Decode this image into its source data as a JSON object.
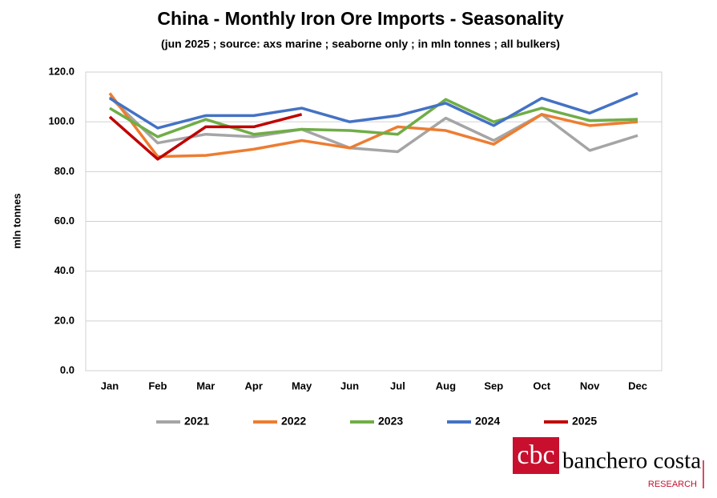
{
  "chart_data": {
    "type": "line",
    "title": "China - Monthly Iron Ore Imports - Seasonality",
    "subtitle": "(jun 2025 ; source: axs marine ; seaborne only ; in mln tonnes ; all bulkers)",
    "y_label": "mln tonnes",
    "categories": [
      "Jan",
      "Feb",
      "Mar",
      "Apr",
      "May",
      "Jun",
      "Jul",
      "Aug",
      "Sep",
      "Oct",
      "Nov",
      "Dec"
    ],
    "series": [
      {
        "name": "2021",
        "color": "#a5a5a5",
        "values": [
          110,
          91.5,
          95,
          94,
          97,
          89.5,
          88,
          101.5,
          92.5,
          103,
          88.5,
          94.5
        ]
      },
      {
        "name": "2022",
        "color": "#ed7d31",
        "values": [
          111.5,
          86,
          86.5,
          89,
          92.5,
          89.5,
          98,
          96.5,
          91,
          103,
          98.5,
          100
        ]
      },
      {
        "name": "2023",
        "color": "#70ad47",
        "values": [
          105.5,
          94,
          101,
          95,
          97,
          96.5,
          95,
          109,
          100,
          105.5,
          100.5,
          101
        ]
      },
      {
        "name": "2024",
        "color": "#4472c4",
        "values": [
          109.5,
          97.5,
          102.5,
          102.5,
          105.5,
          100,
          102.5,
          107.5,
          98.5,
          109.5,
          103.5,
          111.5
        ]
      },
      {
        "name": "2025",
        "color": "#c00000",
        "values": [
          102,
          85,
          98,
          98,
          103,
          null,
          null,
          null,
          null,
          null,
          null,
          null
        ]
      }
    ],
    "ylim": [
      0,
      120
    ],
    "yticks": [
      {
        "value": 0,
        "label": "0.0"
      },
      {
        "value": 20,
        "label": "20.0"
      },
      {
        "value": 40,
        "label": "40.0"
      },
      {
        "value": 60,
        "label": "60.0"
      },
      {
        "value": 80,
        "label": "80.0"
      },
      {
        "value": 100,
        "label": "100.0"
      },
      {
        "value": 120,
        "label": "120.0"
      }
    ],
    "grid": true,
    "legend": "bottom"
  },
  "logo": {
    "name": "banchero costa",
    "tagline": "RESEARCH"
  }
}
